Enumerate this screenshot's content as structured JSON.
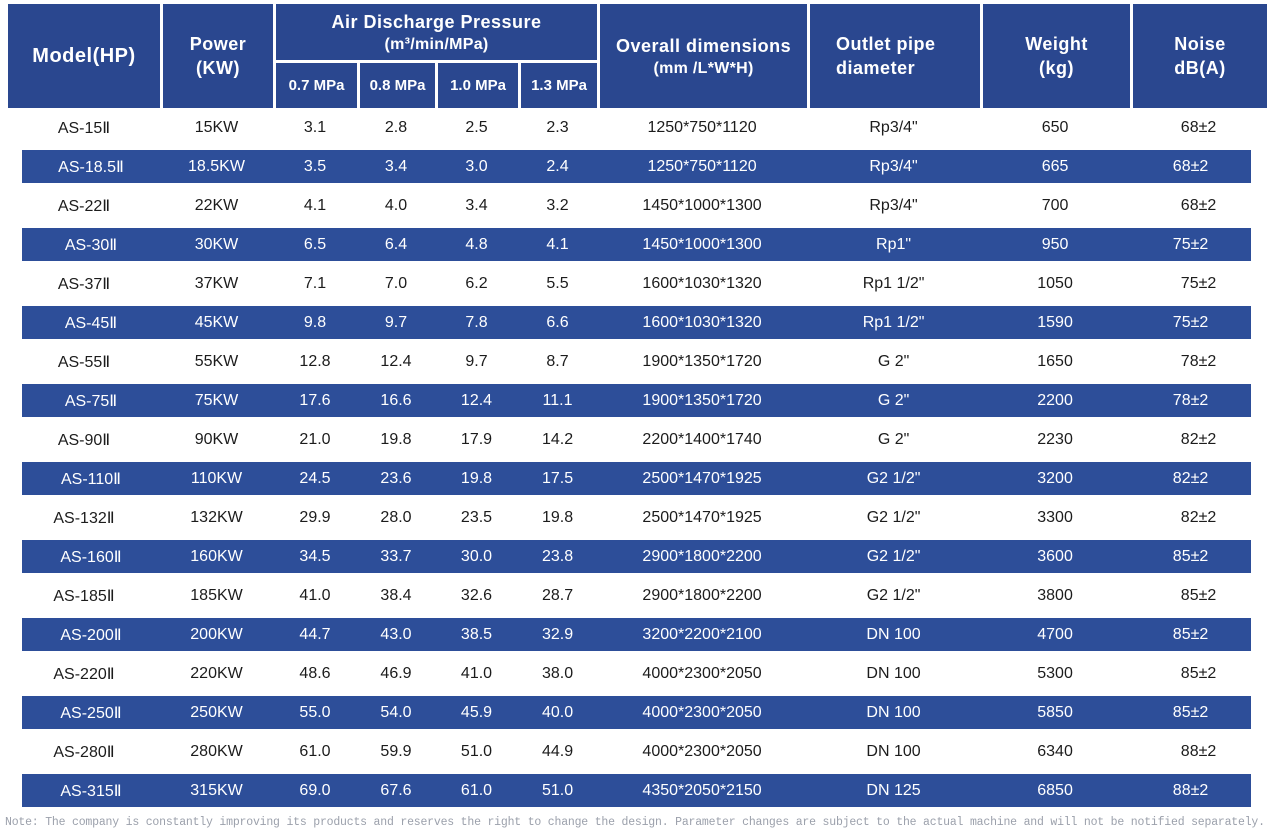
{
  "table": {
    "header": {
      "model": "Model(HP)",
      "power_line1": "Power",
      "power_line2": "(KW)",
      "pressure_title": "Air Discharge Pressure",
      "pressure_unit": "(m³/min/MPa)",
      "pressure_cols": [
        "0.7 MPa",
        "0.8 MPa",
        "1.0 MPa",
        "1.3 MPa"
      ],
      "dimensions_line1": "Overall dimensions",
      "dimensions_line2": "(mm /L*W*H)",
      "outlet_line1": "Outlet pipe",
      "outlet_line2": "diameter",
      "weight_line1": "Weight",
      "weight_line2": "(kg)",
      "noise_line1": "Noise",
      "noise_line2": "dB(A)"
    },
    "column_keys": [
      "model",
      "power",
      "pressure-0.7mpa",
      "pressure-0.8mpa",
      "pressure-1.0mpa",
      "pressure-1.3mpa",
      "dimensions",
      "outlet-pipe",
      "weight",
      "noise"
    ],
    "rows": [
      [
        "AS-15Ⅱ",
        "15KW",
        "3.1",
        "2.8",
        "2.5",
        "2.3",
        "1250*750*1120",
        "Rp3/4\"",
        "650",
        "68±2"
      ],
      [
        "AS-18.5Ⅱ",
        "18.5KW",
        "3.5",
        "3.4",
        "3.0",
        "2.4",
        "1250*750*1120",
        "Rp3/4\"",
        "665",
        "68±2"
      ],
      [
        "AS-22Ⅱ",
        "22KW",
        "4.1",
        "4.0",
        "3.4",
        "3.2",
        "1450*1000*1300",
        "Rp3/4\"",
        "700",
        "68±2"
      ],
      [
        "AS-30Ⅱ",
        "30KW",
        "6.5",
        "6.4",
        "4.8",
        "4.1",
        "1450*1000*1300",
        "Rp1\"",
        "950",
        "75±2"
      ],
      [
        "AS-37Ⅱ",
        "37KW",
        "7.1",
        "7.0",
        "6.2",
        "5.5",
        "1600*1030*1320",
        "Rp1 1/2\"",
        "1050",
        "75±2"
      ],
      [
        "AS-45Ⅱ",
        "45KW",
        "9.8",
        "9.7",
        "7.8",
        "6.6",
        "1600*1030*1320",
        "Rp1 1/2\"",
        "1590",
        "75±2"
      ],
      [
        "AS-55Ⅱ",
        "55KW",
        "12.8",
        "12.4",
        "9.7",
        "8.7",
        "1900*1350*1720",
        "G 2\"",
        "1650",
        "78±2"
      ],
      [
        "AS-75Ⅱ",
        "75KW",
        "17.6",
        "16.6",
        "12.4",
        "11.1",
        "1900*1350*1720",
        "G 2\"",
        "2200",
        "78±2"
      ],
      [
        "AS-90Ⅱ",
        "90KW",
        "21.0",
        "19.8",
        "17.9",
        "14.2",
        "2200*1400*1740",
        "G 2\"",
        "2230",
        "82±2"
      ],
      [
        "AS-110Ⅱ",
        "110KW",
        "24.5",
        "23.6",
        "19.8",
        "17.5",
        "2500*1470*1925",
        "G2 1/2\"",
        "3200",
        "82±2"
      ],
      [
        "AS-132Ⅱ",
        "132KW",
        "29.9",
        "28.0",
        "23.5",
        "19.8",
        "2500*1470*1925",
        "G2 1/2\"",
        "3300",
        "82±2"
      ],
      [
        "AS-160Ⅱ",
        "160KW",
        "34.5",
        "33.7",
        "30.0",
        "23.8",
        "2900*1800*2200",
        "G2 1/2\"",
        "3600",
        "85±2"
      ],
      [
        "AS-185Ⅱ",
        "185KW",
        "41.0",
        "38.4",
        "32.6",
        "28.7",
        "2900*1800*2200",
        "G2 1/2\"",
        "3800",
        "85±2"
      ],
      [
        "AS-200Ⅱ",
        "200KW",
        "44.7",
        "43.0",
        "38.5",
        "32.9",
        "3200*2200*2100",
        "DN 100",
        "4700",
        "85±2"
      ],
      [
        "AS-220Ⅱ",
        "220KW",
        "48.6",
        "46.9",
        "41.0",
        "38.0",
        "4000*2300*2050",
        "DN 100",
        "5300",
        "85±2"
      ],
      [
        "AS-250Ⅱ",
        "250KW",
        "55.0",
        "54.0",
        "45.9",
        "40.0",
        "4000*2300*2050",
        "DN 100",
        "5850",
        "85±2"
      ],
      [
        "AS-280Ⅱ",
        "280KW",
        "61.0",
        "59.9",
        "51.0",
        "44.9",
        "4000*2300*2050",
        "DN 100",
        "6340",
        "88±2"
      ],
      [
        "AS-315Ⅱ",
        "315KW",
        "69.0",
        "67.6",
        "61.0",
        "51.0",
        "4350*2050*2150",
        "DN 125",
        "6850",
        "88±2"
      ]
    ]
  },
  "note": "Note: The company is constantly improving its products and reserves the right to change the design. Parameter changes are subject to the actual machine and will not be notified separately.",
  "colors": {
    "header_bg": "#2a478f",
    "stripe_bg": "#2d4e99",
    "grid_line": "#ffffff",
    "note_text": "#9ba0ab"
  }
}
